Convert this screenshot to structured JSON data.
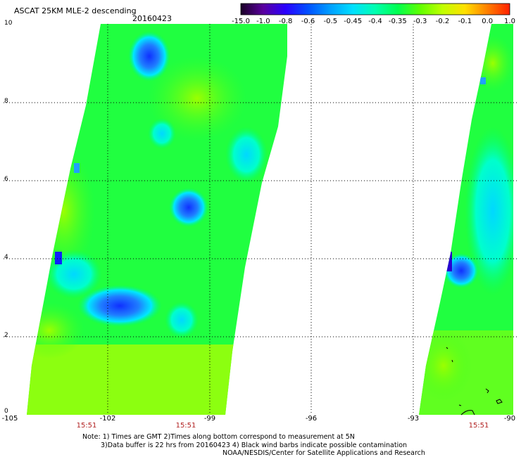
{
  "header": {
    "title": "ASCAT 25KM MLE-2 descending",
    "date": "20160423"
  },
  "colorbar": {
    "ticks": [
      "-15.0",
      "-1.0",
      "-0.8",
      "-0.6",
      "-0.5",
      "-0.45",
      "-0.4",
      "-0.35",
      "-0.3",
      "-0.2",
      "-0.1",
      "0.0",
      "1.0"
    ],
    "colors": [
      "#1a0026",
      "#5a009e",
      "#2a00ff",
      "#0050ff",
      "#00a0ff",
      "#00e0ff",
      "#00ffb0",
      "#00ff50",
      "#60ff00",
      "#c0ff00",
      "#ffe000",
      "#ff8000",
      "#ff2000"
    ]
  },
  "axes": {
    "y_labels": [
      "10",
      "8",
      "6",
      "4",
      "2",
      "0"
    ],
    "x_labels": [
      "-105",
      "-102",
      "-99",
      "-96",
      "-93",
      "-90"
    ]
  },
  "times": [
    "15:51",
    "15:51",
    "15:51"
  ],
  "notes": [
    "Note: 1) Times are GMT 2)Times along bottom correspond to measurement at 5N",
    "3)Data buffer is 22 hrs from 20160423 4) Black wind barbs indicate possible contamination",
    "NOAA/NESDIS/Center for Satellite Applications and Research"
  ]
}
